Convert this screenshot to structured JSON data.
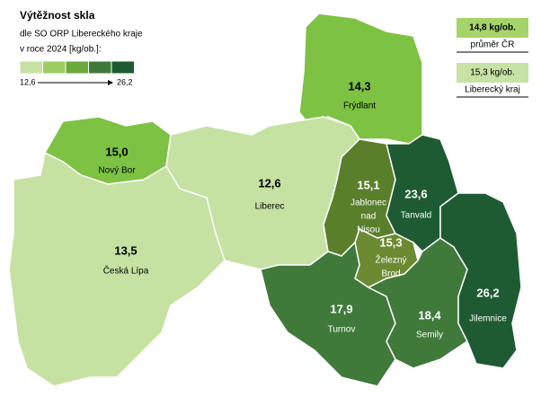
{
  "title": "Výtěžnost skla",
  "subtitle_lines": [
    "dle SO ORP Libereckého kraje",
    "v roce 2024 [kg/ob.]:"
  ],
  "legend": {
    "colors": [
      "#c6e2a2",
      "#9ccd62",
      "#6aa93c",
      "#3f7a3b",
      "#1e5b32"
    ],
    "min": {
      "value": 12.6,
      "label": "12,6"
    },
    "max": {
      "value": 26.2,
      "label": "26,2"
    }
  },
  "references": [
    {
      "value": 14.8,
      "label": "14,8 kg/ob.",
      "name": "průměr ČR",
      "color": "#a6d46a"
    },
    {
      "value": 15.3,
      "label": "15,3 kg/ob.",
      "name": "Liberecký kraj",
      "color": "#c6e2a5"
    }
  ],
  "regions": [
    {
      "name_lines": [
        "Frýdlant"
      ],
      "value": 14.3,
      "label": "14,3",
      "color": "#7dc242"
    },
    {
      "name_lines": [
        "Nový Bor"
      ],
      "value": 15.0,
      "label": "15,0",
      "color": "#7dc242"
    },
    {
      "name_lines": [
        "Česká Lípa"
      ],
      "value": 13.5,
      "label": "13,5",
      "color": "#c6e2a2"
    },
    {
      "name_lines": [
        "Liberec"
      ],
      "value": 12.6,
      "label": "12,6",
      "color": "#c6e2a2"
    },
    {
      "name_lines": [
        "Jablonec",
        "nad",
        "Nisou"
      ],
      "value": 15.1,
      "label": "15,1",
      "color": "#5a7f2b"
    },
    {
      "name_lines": [
        "Tanvald"
      ],
      "value": 23.6,
      "label": "23,6",
      "color": "#1e5b32"
    },
    {
      "name_lines": [
        "Železný",
        "Brod"
      ],
      "value": 15.3,
      "label": "15,3",
      "color": "#6b8a32"
    },
    {
      "name_lines": [
        "Turnov"
      ],
      "value": 17.9,
      "label": "17,9",
      "color": "#3f7a3b"
    },
    {
      "name_lines": [
        "Semily"
      ],
      "value": 18.4,
      "label": "18,4",
      "color": "#3f7a3b"
    },
    {
      "name_lines": [
        "Jilemnice"
      ],
      "value": 26.2,
      "label": "26,2",
      "color": "#1e5b32"
    }
  ]
}
